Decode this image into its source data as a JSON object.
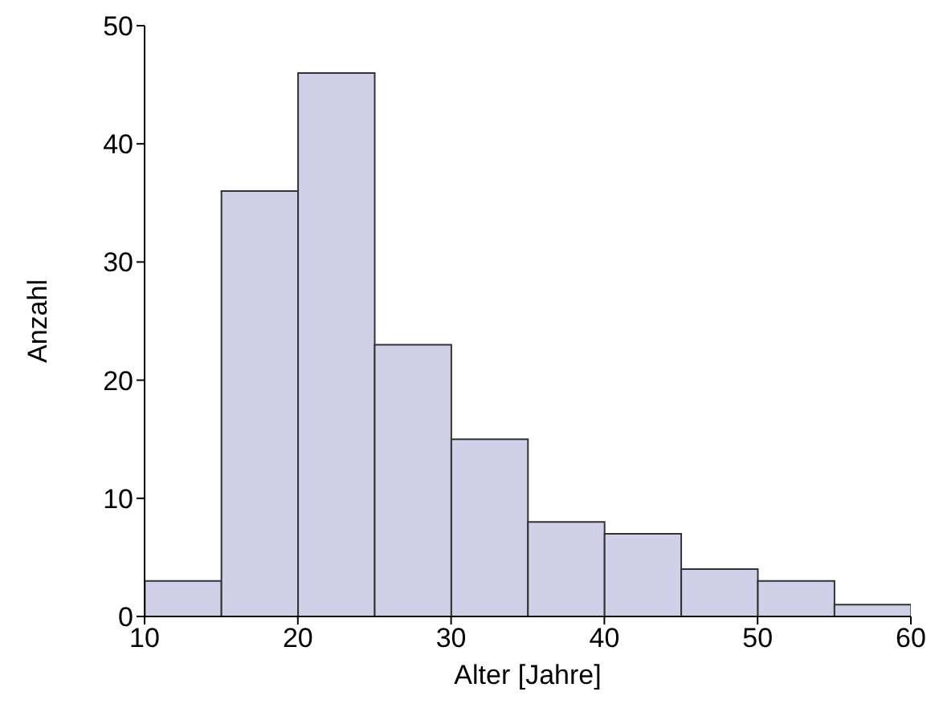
{
  "chart_data": {
    "type": "histogram",
    "xlabel": "Alter [Jahre]",
    "ylabel": "Anzahl",
    "bins": [
      10,
      15,
      20,
      25,
      30,
      35,
      40,
      45,
      50,
      55,
      60
    ],
    "values": [
      3,
      36,
      46,
      23,
      15,
      8,
      7,
      4,
      3,
      1
    ],
    "color": "#d0d0e8",
    "xlim": [
      10,
      60
    ],
    "xticks": [
      10,
      20,
      30,
      40,
      50,
      60
    ],
    "ylim": [
      0,
      50
    ],
    "yticks": [
      0,
      10,
      20,
      30,
      40,
      50
    ],
    "grid": false
  }
}
